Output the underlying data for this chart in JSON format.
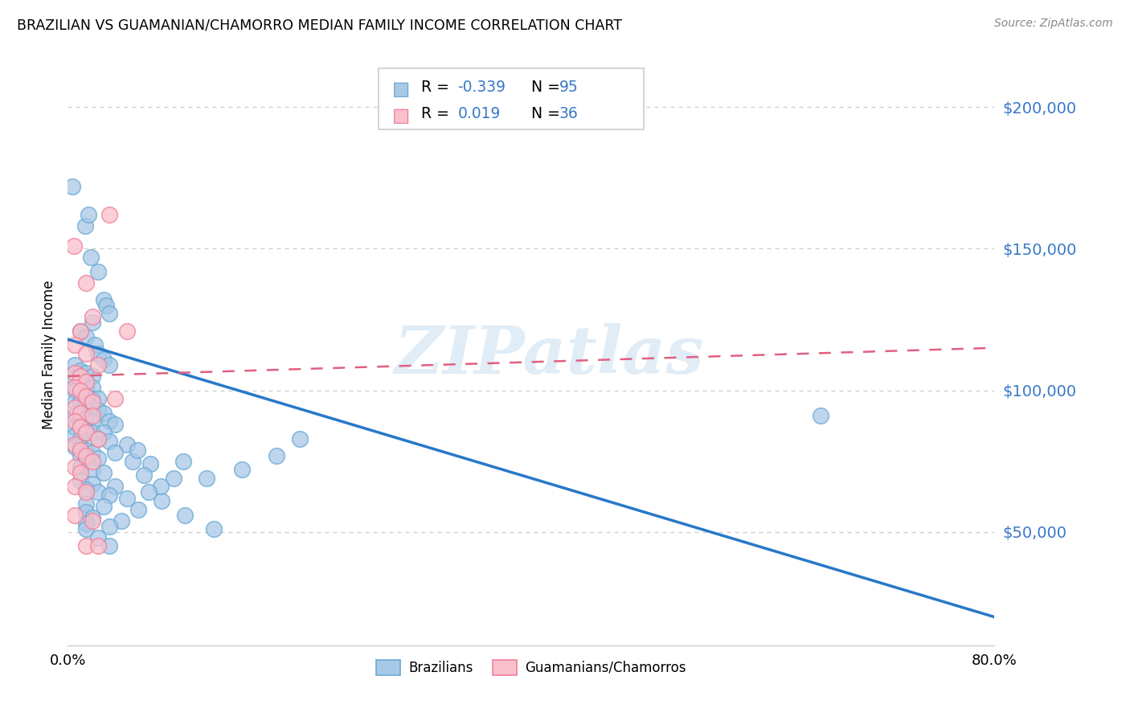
{
  "title": "BRAZILIAN VS GUAMANIAN/CHAMORRO MEDIAN FAMILY INCOME CORRELATION CHART",
  "source": "Source: ZipAtlas.com",
  "ylabel": "Median Family Income",
  "ytick_labels": [
    "$50,000",
    "$100,000",
    "$150,000",
    "$200,000"
  ],
  "ytick_values": [
    50000,
    100000,
    150000,
    200000
  ],
  "watermark": "ZIPatlas",
  "legend_r1_label": "R = ",
  "legend_r1_val": "-0.339",
  "legend_n1_label": "N = ",
  "legend_n1_val": "95",
  "legend_r2_label": "R =  ",
  "legend_r2_val": "0.019",
  "legend_n2_label": "N = ",
  "legend_n2_val": "36",
  "blue_fill": "#a8c8e8",
  "blue_edge": "#6aaad4",
  "pink_fill": "#f9c0cc",
  "pink_edge": "#f08098",
  "line_blue": "#2878c8",
  "line_pink": "#e06080",
  "text_blue": "#3878c8",
  "blue_scatter": [
    [
      0.4,
      172000
    ],
    [
      1.5,
      158000
    ],
    [
      1.8,
      162000
    ],
    [
      2.0,
      147000
    ],
    [
      2.6,
      142000
    ],
    [
      3.1,
      132000
    ],
    [
      3.3,
      130000
    ],
    [
      3.6,
      127000
    ],
    [
      1.1,
      121000
    ],
    [
      1.6,
      119000
    ],
    [
      2.1,
      124000
    ],
    [
      2.3,
      116000
    ],
    [
      2.6,
      113000
    ],
    [
      3.1,
      111000
    ],
    [
      3.6,
      109000
    ],
    [
      0.6,
      109000
    ],
    [
      1.1,
      107000
    ],
    [
      1.6,
      106000
    ],
    [
      2.1,
      105000
    ],
    [
      0.6,
      104000
    ],
    [
      1.1,
      103000
    ],
    [
      1.6,
      101000
    ],
    [
      2.1,
      101000
    ],
    [
      0.6,
      100000
    ],
    [
      1.1,
      99000
    ],
    [
      1.6,
      98000
    ],
    [
      2.1,
      97000
    ],
    [
      2.6,
      97000
    ],
    [
      0.6,
      96000
    ],
    [
      1.1,
      96000
    ],
    [
      1.6,
      95000
    ],
    [
      2.1,
      94000
    ],
    [
      2.6,
      93000
    ],
    [
      3.1,
      92000
    ],
    [
      0.6,
      91000
    ],
    [
      1.1,
      90000
    ],
    [
      1.6,
      90000
    ],
    [
      2.1,
      89000
    ],
    [
      3.6,
      89000
    ],
    [
      4.1,
      88000
    ],
    [
      0.6,
      87000
    ],
    [
      1.1,
      87000
    ],
    [
      1.6,
      86000
    ],
    [
      2.1,
      85000
    ],
    [
      3.1,
      85000
    ],
    [
      0.6,
      84000
    ],
    [
      1.1,
      83000
    ],
    [
      2.6,
      83000
    ],
    [
      3.6,
      82000
    ],
    [
      5.1,
      81000
    ],
    [
      0.6,
      80000
    ],
    [
      1.1,
      80000
    ],
    [
      1.6,
      79000
    ],
    [
      2.1,
      78000
    ],
    [
      4.1,
      78000
    ],
    [
      1.1,
      77000
    ],
    [
      1.6,
      76000
    ],
    [
      2.6,
      76000
    ],
    [
      5.6,
      75000
    ],
    [
      7.1,
      74000
    ],
    [
      1.1,
      73000
    ],
    [
      2.1,
      72000
    ],
    [
      3.1,
      71000
    ],
    [
      6.6,
      70000
    ],
    [
      9.1,
      69000
    ],
    [
      1.1,
      68000
    ],
    [
      2.1,
      67000
    ],
    [
      4.1,
      66000
    ],
    [
      1.6,
      65000
    ],
    [
      2.6,
      64000
    ],
    [
      3.6,
      63000
    ],
    [
      5.1,
      62000
    ],
    [
      8.1,
      61000
    ],
    [
      1.6,
      60000
    ],
    [
      3.1,
      59000
    ],
    [
      6.1,
      58000
    ],
    [
      1.6,
      57000
    ],
    [
      10.1,
      56000
    ],
    [
      2.1,
      55000
    ],
    [
      4.6,
      54000
    ],
    [
      1.6,
      53000
    ],
    [
      3.6,
      52000
    ],
    [
      1.6,
      51000
    ],
    [
      12.6,
      51000
    ],
    [
      2.6,
      48000
    ],
    [
      3.6,
      45000
    ],
    [
      65.0,
      91000
    ],
    [
      20.0,
      83000
    ],
    [
      18.0,
      77000
    ],
    [
      15.0,
      72000
    ],
    [
      10.0,
      75000
    ],
    [
      12.0,
      69000
    ],
    [
      8.0,
      66000
    ],
    [
      6.0,
      79000
    ],
    [
      7.0,
      64000
    ]
  ],
  "pink_scatter": [
    [
      0.5,
      151000
    ],
    [
      3.6,
      162000
    ],
    [
      1.6,
      138000
    ],
    [
      2.1,
      126000
    ],
    [
      1.1,
      121000
    ],
    [
      0.6,
      116000
    ],
    [
      1.6,
      113000
    ],
    [
      2.6,
      109000
    ],
    [
      0.6,
      106000
    ],
    [
      1.1,
      105000
    ],
    [
      1.6,
      103000
    ],
    [
      0.6,
      101000
    ],
    [
      1.1,
      100000
    ],
    [
      1.6,
      98000
    ],
    [
      2.1,
      96000
    ],
    [
      0.6,
      94000
    ],
    [
      1.1,
      92000
    ],
    [
      2.1,
      91000
    ],
    [
      0.6,
      89000
    ],
    [
      1.1,
      87000
    ],
    [
      1.6,
      85000
    ],
    [
      2.6,
      83000
    ],
    [
      0.6,
      81000
    ],
    [
      1.1,
      79000
    ],
    [
      1.6,
      77000
    ],
    [
      2.1,
      75000
    ],
    [
      0.6,
      73000
    ],
    [
      1.1,
      71000
    ],
    [
      0.6,
      66000
    ],
    [
      1.6,
      64000
    ],
    [
      0.6,
      56000
    ],
    [
      2.1,
      54000
    ],
    [
      1.6,
      45000
    ],
    [
      2.6,
      45000
    ],
    [
      5.1,
      121000
    ],
    [
      4.1,
      97000
    ]
  ],
  "blue_line_x": [
    0.0,
    80.0
  ],
  "blue_line_y": [
    118000,
    20000
  ],
  "pink_line_x": [
    0.0,
    80.0
  ],
  "pink_line_y": [
    105000,
    115000
  ],
  "xmin": 0.0,
  "xmax": 80.0,
  "ymin": 10000,
  "ymax": 215000,
  "xtick_positions": [
    0,
    10,
    20,
    30,
    40,
    50,
    60,
    70,
    80
  ],
  "xtick_labels": [
    "0.0%",
    "",
    "",
    "",
    "",
    "",
    "",
    "",
    "80.0%"
  ],
  "grid_color": "#cccccc",
  "background_color": "#ffffff"
}
